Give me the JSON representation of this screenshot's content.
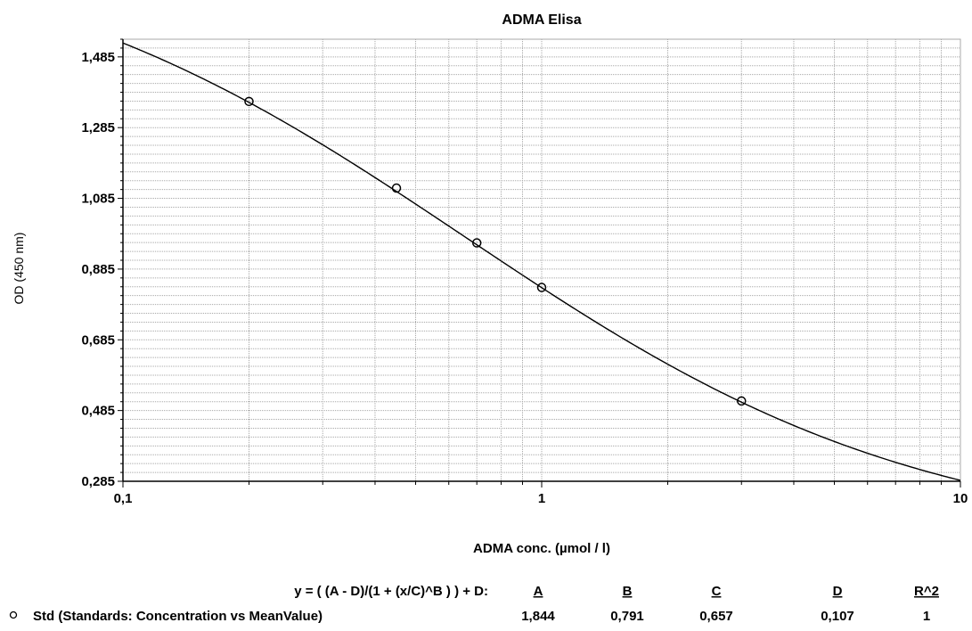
{
  "chart_data": {
    "type": "line",
    "title": "ADMA Elisa",
    "xlabel": "ADMA conc. (µmol / l)",
    "ylabel": "OD (450 nm)",
    "x_scale": "log",
    "xlim": [
      0.1,
      10
    ],
    "ylim": [
      0.285,
      1.535
    ],
    "x_ticks": [
      {
        "value": 0.1,
        "label": "0,1"
      },
      {
        "value": 1,
        "label": "1"
      },
      {
        "value": 10,
        "label": "10"
      }
    ],
    "y_ticks": [
      {
        "value": 0.285,
        "label": "0,285"
      },
      {
        "value": 0.485,
        "label": "0,485"
      },
      {
        "value": 0.685,
        "label": "0,685"
      },
      {
        "value": 0.885,
        "label": "0,885"
      },
      {
        "value": 1.085,
        "label": "1,085"
      },
      {
        "value": 1.285,
        "label": "1,285"
      },
      {
        "value": 1.485,
        "label": "1,485"
      }
    ],
    "grid": true,
    "series": [
      {
        "name": "Std (Standards: Concentration vs MeanValue)",
        "marker": "circle",
        "points": [
          {
            "x": 0.2,
            "y": 1.359
          },
          {
            "x": 0.45,
            "y": 1.114
          },
          {
            "x": 0.7,
            "y": 0.959
          },
          {
            "x": 1.0,
            "y": 0.833
          },
          {
            "x": 3.0,
            "y": 0.512
          }
        ],
        "fit": {
          "equation": "y = ( (A - D)/(1 + (x/C)^B ) ) + D:",
          "A": 1.844,
          "B": 0.791,
          "C": 0.657,
          "D": 0.107
        }
      }
    ],
    "fit_table": {
      "equation": "y = ( (A - D)/(1 + (x/C)^B ) ) + D:",
      "headers": [
        "A",
        "B",
        "C",
        "D",
        "R^2"
      ],
      "row_label": "Std (Standards: Concentration vs MeanValue)",
      "values": [
        "1,844",
        "0,791",
        "0,657",
        "0,107",
        "1"
      ]
    }
  },
  "colors": {
    "line": "#000000",
    "grid": "#a8a8a8",
    "background": "#ffffff"
  }
}
